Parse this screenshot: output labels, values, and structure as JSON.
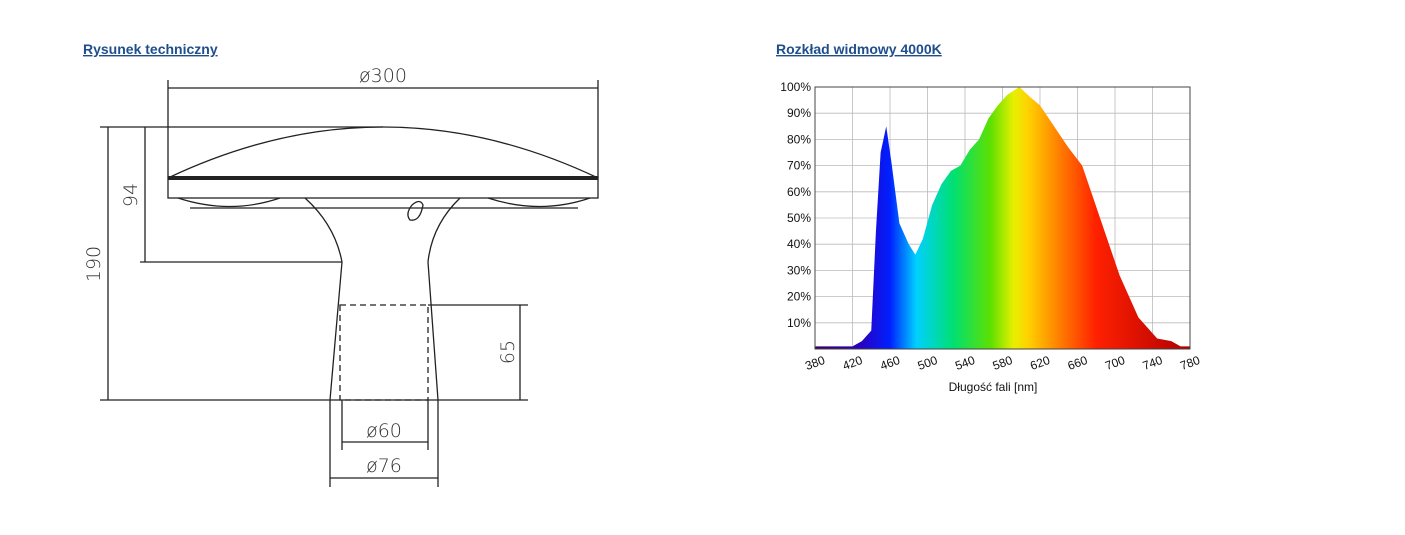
{
  "drawing": {
    "title": "Rysunek techniczny",
    "dimensions": {
      "diameter_top": "ø300",
      "height_head": "94",
      "height_total": "190",
      "height_socket": "65",
      "diameter_inner": "ø60",
      "diameter_outer": "ø76"
    }
  },
  "chart_data": {
    "type": "area",
    "title": "Rozkład widmowy 4000K",
    "x_label": "Długość fali [nm]",
    "x": [
      380,
      400,
      420,
      430,
      440,
      445,
      450,
      456,
      462,
      470,
      480,
      487,
      495,
      505,
      515,
      525,
      535,
      545,
      555,
      565,
      575,
      585,
      598,
      610,
      620,
      635,
      650,
      665,
      685,
      705,
      725,
      745,
      760,
      770,
      780
    ],
    "values": [
      1,
      1,
      1,
      3,
      7,
      45,
      75,
      85,
      70,
      48,
      40,
      36,
      42,
      55,
      63,
      68,
      70,
      76,
      80,
      88,
      93,
      97,
      100,
      96,
      93,
      85,
      77,
      70,
      49,
      28,
      12,
      4,
      3,
      1,
      1
    ],
    "xlim": [
      380,
      780
    ],
    "ylim": [
      0,
      100
    ],
    "xticks": [
      380,
      420,
      460,
      500,
      540,
      580,
      620,
      660,
      700,
      740,
      780
    ],
    "yticks": [
      {
        "value": 10,
        "label": "10%"
      },
      {
        "value": 20,
        "label": "20%"
      },
      {
        "value": 30,
        "label": "30%"
      },
      {
        "value": 40,
        "label": "40%"
      },
      {
        "value": 50,
        "label": "50%"
      },
      {
        "value": 60,
        "label": "60%"
      },
      {
        "value": 70,
        "label": "70%"
      },
      {
        "value": 80,
        "label": "80%"
      },
      {
        "value": 90,
        "label": "90%"
      },
      {
        "value": 100,
        "label": "100%"
      }
    ],
    "grid": true
  }
}
